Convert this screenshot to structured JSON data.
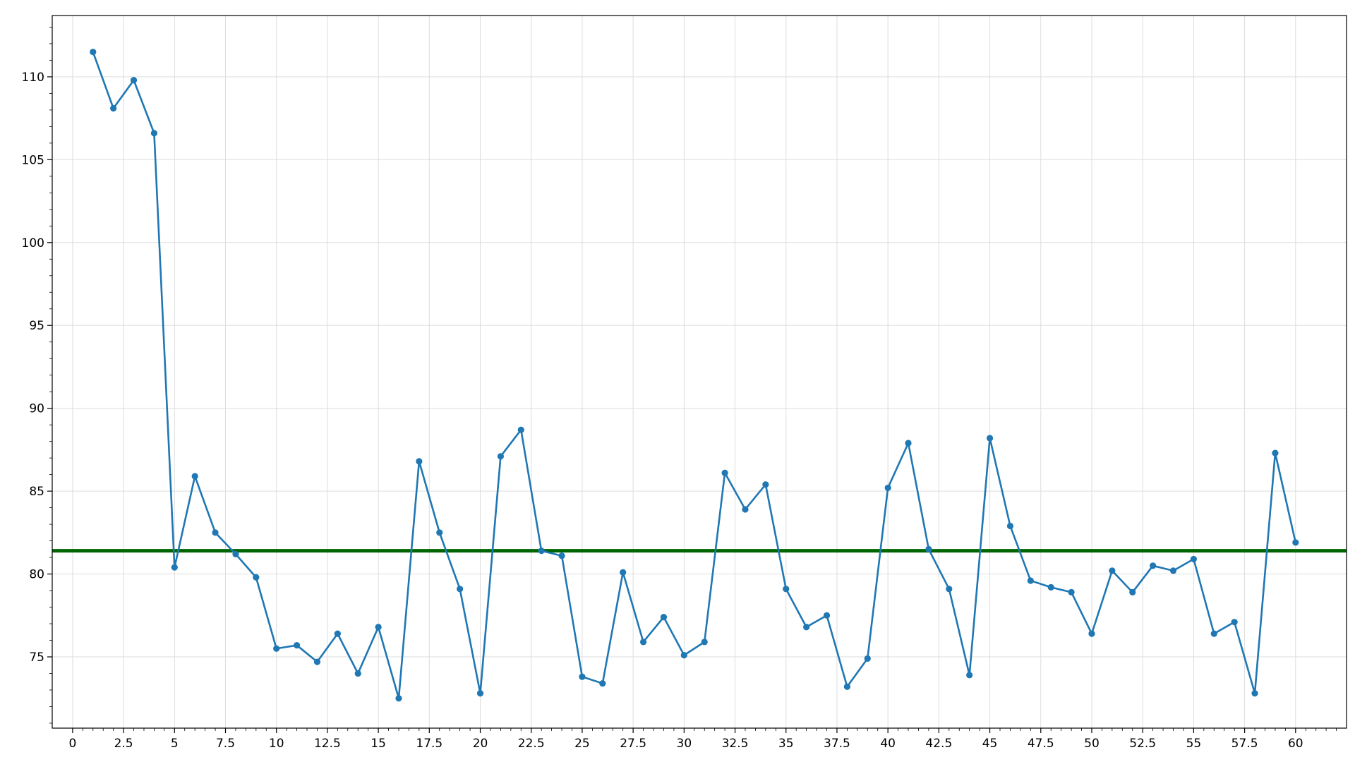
{
  "chart_data": {
    "type": "line",
    "title": "",
    "xlabel": "",
    "ylabel": "",
    "xlim": [
      -1,
      62.5
    ],
    "ylim": [
      70.7,
      113.7
    ],
    "grid": true,
    "legend": "none",
    "x_ticks": [
      0,
      2.5,
      5,
      7.5,
      10,
      12.5,
      15,
      17.5,
      20,
      22.5,
      25,
      27.5,
      30,
      32.5,
      35,
      37.5,
      40,
      42.5,
      45,
      47.5,
      50,
      52.5,
      55,
      57.5,
      60
    ],
    "x_tick_labels": [
      "0",
      "2.5",
      "5",
      "7.5",
      "10",
      "12.5",
      "15",
      "17.5",
      "20",
      "22.5",
      "25",
      "27.5",
      "30",
      "32.5",
      "35",
      "37.5",
      "40",
      "42.5",
      "45",
      "47.5",
      "50",
      "52.5",
      "55",
      "57.5",
      "60"
    ],
    "y_ticks": [
      75,
      80,
      85,
      90,
      95,
      100,
      105,
      110
    ],
    "y_tick_labels": [
      "75",
      "80",
      "85",
      "90",
      "95",
      "100",
      "105",
      "110"
    ],
    "series": [
      {
        "color": "#1f77b4",
        "x": [
          1,
          2,
          3,
          4,
          5,
          6,
          7,
          8,
          9,
          10,
          11,
          12,
          13,
          14,
          15,
          16,
          17,
          18,
          19,
          20,
          21,
          22,
          23,
          24,
          25,
          26,
          27,
          28,
          29,
          30,
          31,
          32,
          33,
          34,
          35,
          36,
          37,
          38,
          39,
          40,
          41,
          42,
          43,
          44,
          45,
          46,
          47,
          48,
          49,
          50,
          51,
          52,
          53,
          54,
          55,
          56,
          57,
          58,
          59,
          60
        ],
        "y": [
          111.5,
          108.1,
          109.8,
          106.6,
          80.4,
          85.9,
          82.5,
          81.2,
          79.8,
          75.5,
          75.7,
          74.7,
          76.4,
          74.0,
          76.8,
          72.5,
          86.8,
          82.5,
          79.1,
          72.8,
          87.1,
          88.7,
          81.4,
          81.1,
          73.8,
          73.4,
          80.1,
          75.9,
          77.4,
          75.1,
          75.9,
          86.1,
          83.9,
          85.4,
          79.1,
          76.8,
          77.5,
          73.2,
          74.9,
          85.2,
          87.9,
          81.5,
          79.1,
          73.9,
          88.2,
          82.9,
          79.6,
          79.2,
          78.9,
          76.4,
          80.2,
          78.9,
          80.5,
          80.2,
          80.9,
          76.4,
          77.1,
          72.8,
          87.3,
          81.9
        ]
      }
    ],
    "reference_line": {
      "y": 81.4,
      "color": "#006400"
    }
  }
}
